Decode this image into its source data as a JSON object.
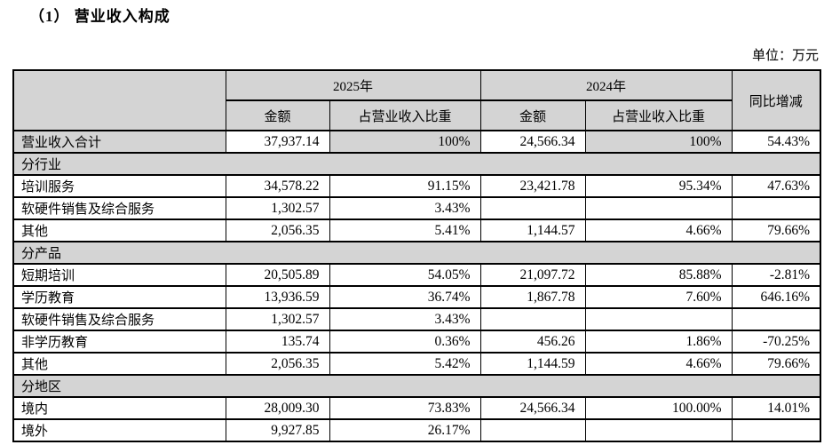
{
  "page": {
    "title": "（1） 营业收入构成",
    "unit_label": "单位：万元"
  },
  "colors": {
    "header_bg": "#d4d4d4",
    "border": "#000000"
  },
  "table": {
    "header": {
      "corner": "",
      "year_2025": "2025年",
      "year_2024": "2024年",
      "amount": "金额",
      "ratio": "占营业收入比重",
      "yoy": "同比增减"
    },
    "rows": [
      {
        "type": "total",
        "label": "营业收入合计",
        "amount_2025": "37,937.14",
        "ratio_2025": "100%",
        "amount_2024": "24,566.34",
        "ratio_2024": "100%",
        "yoy": "54.43%"
      },
      {
        "type": "section",
        "label": "分行业"
      },
      {
        "type": "data",
        "label": "培训服务",
        "amount_2025": "34,578.22",
        "ratio_2025": "91.15%",
        "amount_2024": "23,421.78",
        "ratio_2024": "95.34%",
        "yoy": "47.63%"
      },
      {
        "type": "data",
        "label": "软硬件销售及综合服务",
        "amount_2025": "1,302.57",
        "ratio_2025": "3.43%",
        "amount_2024": "",
        "ratio_2024": "",
        "yoy": ""
      },
      {
        "type": "data",
        "label": "其他",
        "amount_2025": "2,056.35",
        "ratio_2025": "5.41%",
        "amount_2024": "1,144.57",
        "ratio_2024": "4.66%",
        "yoy": "79.66%"
      },
      {
        "type": "section",
        "label": "分产品"
      },
      {
        "type": "data",
        "label": "短期培训",
        "amount_2025": "20,505.89",
        "ratio_2025": "54.05%",
        "amount_2024": "21,097.72",
        "ratio_2024": "85.88%",
        "yoy": "-2.81%"
      },
      {
        "type": "data",
        "label": "学历教育",
        "amount_2025": "13,936.59",
        "ratio_2025": "36.74%",
        "amount_2024": "1,867.78",
        "ratio_2024": "7.60%",
        "yoy": "646.16%"
      },
      {
        "type": "data",
        "label": "软硬件销售及综合服务",
        "amount_2025": "1,302.57",
        "ratio_2025": "3.43%",
        "amount_2024": "",
        "ratio_2024": "",
        "yoy": ""
      },
      {
        "type": "data",
        "label": "非学历教育",
        "amount_2025": "135.74",
        "ratio_2025": "0.36%",
        "amount_2024": "456.26",
        "ratio_2024": "1.86%",
        "yoy": "-70.25%"
      },
      {
        "type": "data",
        "label": "其他",
        "amount_2025": "2,056.35",
        "ratio_2025": "5.42%",
        "amount_2024": "1,144.59",
        "ratio_2024": "4.66%",
        "yoy": "79.66%"
      },
      {
        "type": "section",
        "label": "分地区"
      },
      {
        "type": "data",
        "label": "境内",
        "amount_2025": "28,009.30",
        "ratio_2025": "73.83%",
        "amount_2024": "24,566.34",
        "ratio_2024": "100.00%",
        "yoy": "14.01%"
      },
      {
        "type": "data",
        "label": "境外",
        "amount_2025": "9,927.85",
        "ratio_2025": "26.17%",
        "amount_2024": "",
        "ratio_2024": "",
        "yoy": ""
      }
    ]
  }
}
